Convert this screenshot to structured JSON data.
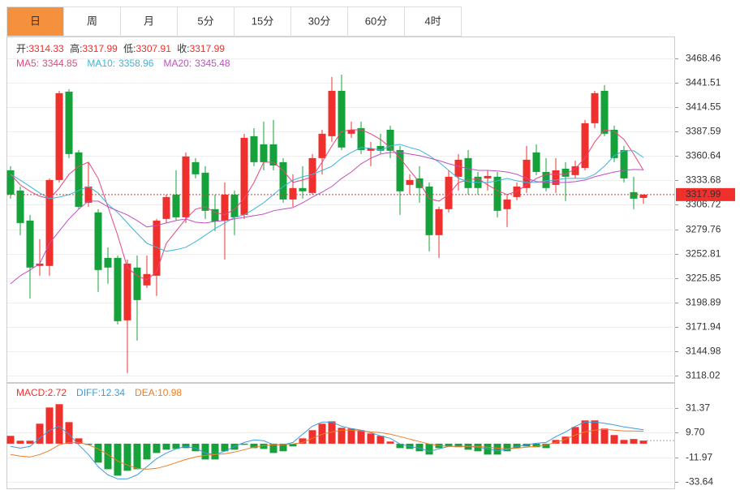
{
  "tabs": [
    "日",
    "周",
    "月",
    "5分",
    "15分",
    "30分",
    "60分",
    "4时"
  ],
  "active_tab": 0,
  "chart_data": [
    {
      "type": "candlestick",
      "header_labels": [
        "开:",
        "高:",
        "低:",
        "收:"
      ],
      "up_color": "#f0302c",
      "down_color": "#16a23a",
      "open": [
        3344.8,
        3322.5,
        3289.3,
        3239.2,
        3239.2,
        3334.1,
        3431.7,
        3364.6,
        3309.0,
        3298.3,
        3248.1,
        3248.1,
        3179.1,
        3237.4,
        3217.7,
        3228.4,
        3291.1,
        3318.0,
        3292.9,
        3353.8,
        3342.2,
        3301.9,
        3289.3,
        3318.0,
        3295.6,
        3382.5,
        3373.5,
        3373.5,
        3353.8,
        3312.6,
        3325.2,
        3319.8,
        3358.3,
        3382.5,
        3432.6,
        3385.2,
        3391.4,
        3366.4,
        3371.7,
        3389.6,
        3367.2,
        3328.7,
        3335.9,
        3326.9,
        3273.2,
        3301.9,
        3337.7,
        3358.3,
        3337.7,
        3335.9,
        3337.7,
        3301.9,
        3315.3,
        3325.2,
        3364.6,
        3343.0,
        3328.7,
        3346.6,
        3339.5,
        3347.5,
        3396.8,
        3432.6,
        3389.6,
        3367.2,
        3320.7,
        3314.33
      ],
      "high": [
        3349.3,
        3326.9,
        3295.6,
        3268.7,
        3335.9,
        3432.6,
        3434.4,
        3367.2,
        3353.8,
        3301.9,
        3259.8,
        3250.8,
        3246.3,
        3250.8,
        3250.8,
        3291.1,
        3318.0,
        3344.8,
        3364.6,
        3358.3,
        3349.3,
        3318.0,
        3331.4,
        3322.5,
        3385.2,
        3391.4,
        3398.6,
        3400.4,
        3358.3,
        3340.4,
        3349.3,
        3362.8,
        3389.6,
        3447.9,
        3450.5,
        3398.6,
        3398.6,
        3376.2,
        3385.2,
        3394.1,
        3371.7,
        3340.4,
        3349.3,
        3331.4,
        3304.5,
        3344.8,
        3362.8,
        3367.2,
        3343.0,
        3344.8,
        3343.0,
        3318.0,
        3331.4,
        3371.7,
        3373.5,
        3358.3,
        3358.3,
        3353.8,
        3355.6,
        3400.4,
        3432.6,
        3438.9,
        3394.1,
        3371.7,
        3337.7,
        3317.99
      ],
      "low": [
        3313.5,
        3273.2,
        3203.3,
        3228.4,
        3228.4,
        3331.4,
        3358.3,
        3301.9,
        3304.5,
        3210.5,
        3219.5,
        3174.6,
        3120.9,
        3156.8,
        3215.0,
        3206.0,
        3286.6,
        3289.3,
        3286.6,
        3335.9,
        3291.1,
        3277.7,
        3246.3,
        3273.2,
        3291.1,
        3349.3,
        3344.8,
        3344.8,
        3309.0,
        3304.5,
        3313.5,
        3318.0,
        3340.4,
        3376.2,
        3367.2,
        3380.7,
        3362.8,
        3349.3,
        3362.8,
        3358.3,
        3295.6,
        3318.0,
        3309.0,
        3255.3,
        3248.1,
        3298.3,
        3322.5,
        3318.0,
        3318.0,
        3322.5,
        3292.9,
        3282.2,
        3311.7,
        3319.8,
        3339.5,
        3321.6,
        3319.8,
        3310.8,
        3335.9,
        3344.8,
        3391.4,
        3382.5,
        3353.8,
        3331.4,
        3301.9,
        3307.91
      ],
      "close": [
        3318.0,
        3286.6,
        3237.4,
        3241.8,
        3334.1,
        3430.0,
        3362.8,
        3304.5,
        3326.9,
        3234.7,
        3237.4,
        3178.2,
        3241.8,
        3201.5,
        3230.2,
        3289.3,
        3315.3,
        3292.9,
        3360.1,
        3340.4,
        3300.1,
        3288.4,
        3318.0,
        3292.9,
        3380.7,
        3353.8,
        3353.8,
        3350.2,
        3312.6,
        3325.2,
        3321.6,
        3358.3,
        3385.2,
        3432.6,
        3370.0,
        3389.6,
        3367.2,
        3369.0,
        3366.4,
        3366.4,
        3321.6,
        3334.1,
        3325.2,
        3273.2,
        3301.9,
        3337.7,
        3356.5,
        3325.2,
        3325.2,
        3338.6,
        3300.1,
        3312.6,
        3326.9,
        3356.5,
        3343.0,
        3325.2,
        3344.8,
        3337.7,
        3349.3,
        3396.8,
        3430.0,
        3385.2,
        3358.3,
        3335.9,
        3313.5,
        3317.99
      ],
      "series": [
        {
          "name": "MA5:",
          "color": "#e9457c",
          "values": [
            3340.4,
            3328.7,
            3321.6,
            3316.2,
            3313.5,
            3325.2,
            3340.4,
            3349.3,
            3353.8,
            3335.9,
            3304.5,
            3273.2,
            3237.4,
            3228.4,
            3223.9,
            3232.9,
            3264.2,
            3277.7,
            3291.1,
            3301.9,
            3304.5,
            3298.3,
            3295.6,
            3301.9,
            3313.5,
            3331.4,
            3353.8,
            3353.8,
            3344.8,
            3331.4,
            3334.1,
            3337.7,
            3353.8,
            3371.7,
            3387.8,
            3389.6,
            3389.6,
            3385.2,
            3378.9,
            3370.0,
            3358.3,
            3344.8,
            3331.4,
            3313.5,
            3310.8,
            3318.0,
            3331.4,
            3334.1,
            3335.9,
            3328.7,
            3322.5,
            3318.0,
            3321.6,
            3328.7,
            3335.9,
            3340.4,
            3340.4,
            3340.4,
            3346.6,
            3358.3,
            3376.2,
            3389.6,
            3387.8,
            3378.9,
            3362.8,
            3344.85
          ]
        },
        {
          "name": "MA10:",
          "color": "#3bb5da",
          "values": [
            3340.4,
            3334.1,
            3326.9,
            3319.8,
            3313.5,
            3315.3,
            3318.0,
            3322.5,
            3326.9,
            3319.8,
            3307.2,
            3298.3,
            3286.6,
            3275.0,
            3264.2,
            3259.8,
            3255.3,
            3257.1,
            3259.8,
            3266.0,
            3273.2,
            3280.4,
            3286.6,
            3292.9,
            3295.6,
            3301.9,
            3309.0,
            3318.0,
            3326.9,
            3334.1,
            3337.7,
            3340.4,
            3344.8,
            3349.3,
            3358.3,
            3364.6,
            3370.0,
            3369.0,
            3367.2,
            3371.7,
            3373.5,
            3370.0,
            3367.2,
            3361.0,
            3353.8,
            3344.8,
            3335.9,
            3332.3,
            3331.4,
            3331.4,
            3333.2,
            3335.9,
            3333.2,
            3331.4,
            3331.4,
            3333.2,
            3334.1,
            3335.9,
            3335.9,
            3335.9,
            3340.4,
            3349.3,
            3361.0,
            3366.4,
            3366.4,
            3358.96
          ]
        },
        {
          "name": "MA20:",
          "color": "#c14fc4",
          "values": [
            3219.5,
            3228.4,
            3234.7,
            3241.8,
            3264.2,
            3277.7,
            3291.1,
            3301.9,
            3310.8,
            3310.8,
            3304.5,
            3300.1,
            3295.6,
            3289.3,
            3282.2,
            3283.9,
            3286.6,
            3289.3,
            3291.1,
            3287.5,
            3286.6,
            3288.4,
            3289.3,
            3291.1,
            3292.9,
            3294.7,
            3296.5,
            3300.1,
            3301.9,
            3303.6,
            3309.0,
            3315.3,
            3320.7,
            3326.9,
            3335.9,
            3343.0,
            3352.0,
            3358.3,
            3362.8,
            3364.6,
            3364.6,
            3362.8,
            3361.0,
            3358.3,
            3355.6,
            3352.0,
            3349.3,
            3346.6,
            3344.8,
            3344.8,
            3344.0,
            3343.0,
            3340.4,
            3335.9,
            3332.3,
            3331.4,
            3331.4,
            3331.4,
            3332.3,
            3334.1,
            3337.7,
            3340.4,
            3343.0,
            3344.8,
            3345.7,
            3345.48
          ]
        }
      ],
      "ylim": [
        3110.0,
        3492.6
      ],
      "yticks": [
        3468.46,
        3441.51,
        3414.55,
        3387.59,
        3360.64,
        3333.68,
        3306.72,
        3279.76,
        3252.81,
        3225.85,
        3198.89,
        3171.94,
        3144.98,
        3118.02
      ],
      "grid": true
    },
    {
      "type": "macd",
      "series": [
        {
          "name": "MACD:",
          "style": "bar",
          "color": "#f0302c",
          "down_color": "#16a23a",
          "values": [
            6.9,
            2.6,
            2.6,
            17.6,
            31.9,
            34.8,
            19.0,
            4.7,
            -1.0,
            -16.7,
            -22.5,
            -28.2,
            -23.9,
            -22.5,
            -13.9,
            -8.2,
            -5.3,
            -4.6,
            -3.9,
            -6.7,
            -13.9,
            -13.9,
            -6.7,
            -5.3,
            -1.0,
            -3.9,
            -4.6,
            -8.2,
            -6.7,
            -2.4,
            4.7,
            11.9,
            17.6,
            19.7,
            14.0,
            13.3,
            11.9,
            9.0,
            6.9,
            1.9,
            -3.9,
            -4.6,
            -6.7,
            -9.6,
            -3.9,
            -2.4,
            -3.1,
            -5.3,
            -6.7,
            -9.6,
            -9.6,
            -6.7,
            -3.9,
            -2.4,
            -3.1,
            -3.9,
            3.3,
            6.2,
            14.7,
            20.5,
            20.5,
            13.3,
            7.6,
            3.3,
            4.1,
            2.72
          ]
        },
        {
          "name": "DIFF:",
          "style": "line",
          "color": "#3a9de0",
          "values": [
            -2.4,
            -3.9,
            -2.4,
            4.7,
            11.9,
            15.4,
            8.3,
            -1.0,
            -9.6,
            -20.3,
            -27.5,
            -31.0,
            -31.0,
            -27.5,
            -20.3,
            -13.2,
            -8.2,
            -4.6,
            -2.4,
            -3.9,
            -8.2,
            -9.6,
            -6.7,
            -2.4,
            1.1,
            3.3,
            2.6,
            -1.0,
            -1.0,
            1.1,
            8.3,
            15.4,
            19.0,
            19.0,
            15.4,
            13.3,
            11.9,
            9.7,
            6.9,
            4.7,
            -0.3,
            -2.4,
            -3.9,
            -6.7,
            -4.6,
            -2.4,
            -2.4,
            -2.4,
            -3.1,
            -4.6,
            -6.0,
            -5.3,
            -2.4,
            -1.0,
            0.4,
            1.1,
            6.2,
            10.4,
            15.4,
            19.0,
            19.0,
            18.0,
            16.5,
            14.8,
            13.5,
            12.34
          ]
        },
        {
          "name": "DEA:",
          "style": "line",
          "color": "#f07d22",
          "values": [
            -9.6,
            -11.0,
            -11.7,
            -9.6,
            -6.0,
            -1.0,
            1.1,
            1.1,
            -1.0,
            -4.6,
            -9.6,
            -15.3,
            -18.9,
            -21.7,
            -22.5,
            -21.7,
            -19.6,
            -16.7,
            -13.9,
            -11.7,
            -10.3,
            -9.6,
            -8.9,
            -7.4,
            -5.3,
            -3.1,
            -1.7,
            -1.0,
            -1.0,
            -0.3,
            1.1,
            4.7,
            8.3,
            10.4,
            11.9,
            11.9,
            11.2,
            10.4,
            9.7,
            8.3,
            6.2,
            4.0,
            1.9,
            -0.3,
            -1.7,
            -2.4,
            -2.4,
            -2.4,
            -2.4,
            -3.1,
            -3.9,
            -4.6,
            -3.9,
            -3.1,
            -2.4,
            -1.0,
            1.1,
            4.0,
            7.6,
            10.4,
            11.9,
            12.6,
            11.9,
            11.2,
            11.2,
            10.98
          ]
        }
      ],
      "ylim": [
        -40.1,
        50.7
      ],
      "yticks": [
        31.37,
        {
          "value": 9.7,
          "label": "9.70"
        },
        -11.97,
        -33.64
      ],
      "grid": true
    }
  ]
}
